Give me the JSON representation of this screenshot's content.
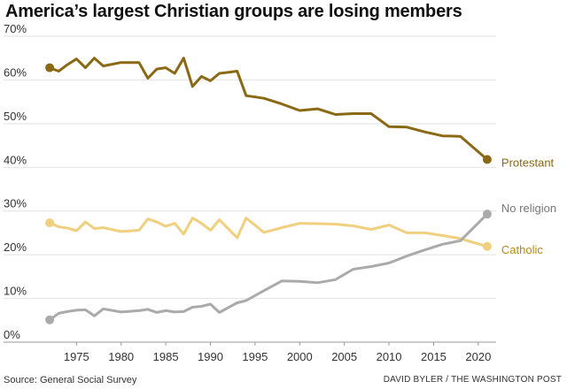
{
  "title": "America’s largest Christian groups are losing members",
  "source": "Source: General Social Survey",
  "credit": "DAVID BYLER / THE WASHINGTON POST",
  "chart_data": {
    "type": "line",
    "title": "America’s largest Christian groups are losing members",
    "xlabel": "",
    "ylabel": "",
    "xlim": [
      1971,
      2022
    ],
    "ylim": [
      0,
      70
    ],
    "x_ticks": [
      "1975",
      "1980",
      "1985",
      "1990",
      "1995",
      "2000",
      "2005",
      "2010",
      "2015",
      "2020"
    ],
    "y_ticks": [
      "0%",
      "10%",
      "20%",
      "30%",
      "40%",
      "50%",
      "60%",
      "70%"
    ],
    "grid": true,
    "series": [
      {
        "name": "Protestant",
        "color": "#8B6914",
        "x": [
          1972,
          1973,
          1974,
          1975,
          1976,
          1977,
          1978,
          1980,
          1982,
          1983,
          1984,
          1985,
          1986,
          1987,
          1988,
          1989,
          1990,
          1991,
          1993,
          1994,
          1996,
          1998,
          2000,
          2002,
          2004,
          2006,
          2008,
          2010,
          2012,
          2014,
          2016,
          2018,
          2021
        ],
        "y": [
          62.8,
          62,
          63.5,
          64.8,
          62.8,
          65,
          63.2,
          64,
          64,
          60.4,
          62.5,
          62.8,
          61.5,
          65,
          58.5,
          60.8,
          59.8,
          61.5,
          62,
          56.4,
          55.8,
          54.5,
          53,
          53.4,
          52.1,
          52.3,
          52.3,
          49.3,
          49.2,
          48.1,
          47.2,
          47.1,
          41.8
        ]
      },
      {
        "name": "Catholic",
        "color": "#F0CF7E",
        "x": [
          1972,
          1973,
          1974,
          1975,
          1976,
          1977,
          1978,
          1980,
          1982,
          1983,
          1984,
          1985,
          1986,
          1987,
          1988,
          1989,
          1990,
          1991,
          1993,
          1994,
          1996,
          1998,
          2000,
          2002,
          2004,
          2006,
          2008,
          2010,
          2012,
          2014,
          2016,
          2018,
          2021
        ],
        "y": [
          27.3,
          26.4,
          26.1,
          25.5,
          27.5,
          26,
          26.2,
          25.3,
          25.6,
          28.2,
          27.5,
          26.5,
          27.2,
          24.7,
          28.4,
          27.2,
          25.6,
          28,
          23.9,
          28.4,
          25.1,
          26.2,
          27.2,
          27.1,
          27,
          26.6,
          25.8,
          26.8,
          25,
          25,
          24.4,
          23.7,
          21.9
        ]
      },
      {
        "name": "No religion",
        "color": "#AAAAAA",
        "x": [
          1972,
          1973,
          1974,
          1975,
          1976,
          1977,
          1978,
          1980,
          1982,
          1983,
          1984,
          1985,
          1986,
          1987,
          1988,
          1989,
          1990,
          1991,
          1993,
          1994,
          1996,
          1998,
          2000,
          2002,
          2004,
          2006,
          2008,
          2010,
          2012,
          2014,
          2016,
          2018,
          2021
        ],
        "y": [
          5.1,
          6.6,
          7,
          7.3,
          7.4,
          6,
          7.6,
          6.9,
          7.2,
          7.5,
          6.8,
          7.2,
          6.9,
          7,
          8,
          8.2,
          8.7,
          6.8,
          9,
          9.5,
          11.8,
          14,
          13.9,
          13.6,
          14.3,
          16.7,
          17.3,
          18.1,
          19.7,
          21.1,
          22.4,
          23.2,
          29.3
        ]
      }
    ]
  }
}
